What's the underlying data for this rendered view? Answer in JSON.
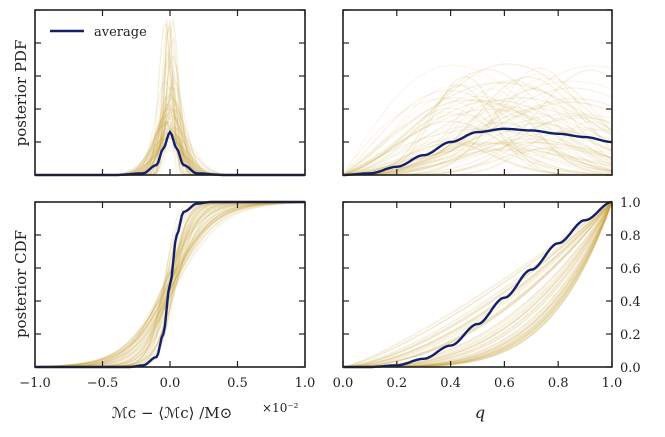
{
  "chart_data": [
    {
      "id": "tl",
      "type": "line",
      "title": "",
      "xlabel": "",
      "ylabel": "posterior PDF",
      "xlim": [
        -1.0,
        1.0
      ],
      "ylim": [
        0,
        1.0
      ],
      "x_ticks": [
        -1.0,
        -0.5,
        0.0,
        0.5,
        1.0
      ],
      "x_tick_labels": [],
      "y_tick_labels": [],
      "legend": {
        "position": "top-left",
        "entries": [
          "average"
        ]
      },
      "average": {
        "name": "average",
        "x": [
          -1.0,
          -0.4,
          -0.2,
          -0.1,
          -0.05,
          0.0,
          0.05,
          0.1,
          0.2,
          0.4,
          1.0
        ],
        "y": [
          0.0,
          0.0,
          0.01,
          0.06,
          0.16,
          0.26,
          0.16,
          0.06,
          0.01,
          0.0,
          0.0
        ]
      },
      "samples_note": "many faint gold posterior curves"
    },
    {
      "id": "tr",
      "type": "line",
      "title": "",
      "xlabel": "",
      "ylabel": "",
      "xlim": [
        0.0,
        1.0
      ],
      "ylim": [
        0,
        1.0
      ],
      "x_tick_labels": [],
      "y_tick_labels": [],
      "average": {
        "name": "average",
        "x": [
          0.0,
          0.1,
          0.2,
          0.3,
          0.4,
          0.5,
          0.6,
          0.7,
          0.8,
          0.9,
          1.0
        ],
        "y": [
          0.0,
          0.01,
          0.05,
          0.12,
          0.2,
          0.26,
          0.28,
          0.27,
          0.25,
          0.23,
          0.2
        ]
      }
    },
    {
      "id": "bl",
      "type": "line",
      "title": "",
      "xlabel": "ℳc − ⟨ℳc⟩ /M⊙",
      "x_offset_label": "×10⁻²",
      "ylabel": "posterior CDF",
      "xlim": [
        -1.0,
        1.0
      ],
      "ylim": [
        0,
        1.0
      ],
      "x_ticks": [
        -1.0,
        -0.5,
        0.0,
        0.5,
        1.0
      ],
      "x_tick_labels": [
        "−1.0",
        "−0.5",
        "0.0",
        "0.5",
        "1.0"
      ],
      "y_tick_labels": [],
      "average": {
        "name": "average",
        "x": [
          -1.0,
          -0.3,
          -0.2,
          -0.1,
          -0.05,
          0.0,
          0.05,
          0.1,
          0.2,
          0.3,
          1.0
        ],
        "y": [
          0.0,
          0.0,
          0.01,
          0.06,
          0.2,
          0.5,
          0.8,
          0.94,
          0.99,
          1.0,
          1.0
        ]
      }
    },
    {
      "id": "br",
      "type": "line",
      "title": "",
      "xlabel": "q",
      "ylabel": "",
      "xlim": [
        0.0,
        1.0
      ],
      "ylim": [
        0,
        1.0
      ],
      "x_ticks": [
        0.0,
        0.2,
        0.4,
        0.6,
        0.8,
        1.0
      ],
      "x_tick_labels": [
        "0.0",
        "0.2",
        "0.4",
        "0.6",
        "0.8",
        "1.0"
      ],
      "y_ticks": [
        0.0,
        0.2,
        0.4,
        0.6,
        0.8,
        1.0
      ],
      "y_tick_labels": [
        "0.0",
        "0.2",
        "0.4",
        "0.6",
        "0.8",
        "1.0"
      ],
      "y_ticks_side": "right",
      "average": {
        "name": "average",
        "x": [
          0.0,
          0.1,
          0.2,
          0.3,
          0.4,
          0.5,
          0.6,
          0.7,
          0.8,
          0.9,
          1.0
        ],
        "y": [
          0.0,
          0.0,
          0.01,
          0.05,
          0.13,
          0.26,
          0.42,
          0.59,
          0.75,
          0.89,
          1.0
        ]
      }
    }
  ],
  "colors": {
    "average": "#12206b",
    "samples": "#c8a13a",
    "axes": "#222222"
  }
}
